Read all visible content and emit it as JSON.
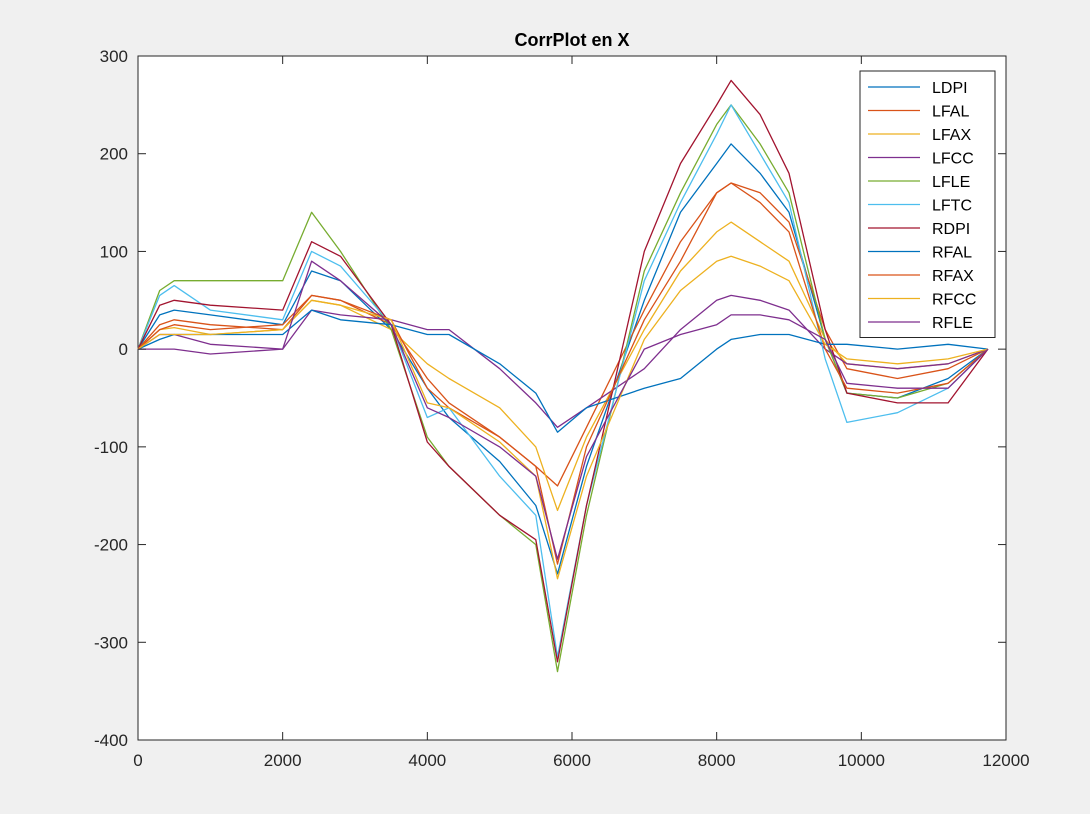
{
  "figure": {
    "background": "#f0f0f0"
  },
  "chart_data": {
    "type": "line",
    "title": "CorrPlot en X",
    "xlabel": "",
    "ylabel": "",
    "xlim": [
      0,
      12000
    ],
    "ylim": [
      -400,
      300
    ],
    "xticks": [
      0,
      2000,
      4000,
      6000,
      8000,
      10000,
      12000
    ],
    "xtick_labels": [
      "0",
      "2000",
      "4000",
      "6000",
      "8000",
      "10000",
      "12000"
    ],
    "yticks": [
      300,
      200,
      100,
      0,
      -100,
      -200,
      -300,
      -400
    ],
    "ytick_labels": [
      "300",
      "200",
      "100",
      "0",
      "-100",
      "-200",
      "-300",
      "-400"
    ],
    "grid": false,
    "legend_position": "top-right",
    "x": [
      0,
      300,
      500,
      1000,
      2000,
      2400,
      2800,
      3500,
      4000,
      4300,
      5000,
      5500,
      5800,
      6200,
      7000,
      7500,
      8000,
      8200,
      8600,
      9000,
      9500,
      9800,
      10500,
      11200,
      11750
    ],
    "series": [
      {
        "name": "LDPI",
        "color": "#0072BD",
        "values": [
          0,
          35,
          40,
          35,
          25,
          80,
          70,
          20,
          -40,
          -70,
          -115,
          -160,
          -230,
          -120,
          50,
          140,
          190,
          210,
          180,
          140,
          10,
          -45,
          -50,
          -30,
          0
        ]
      },
      {
        "name": "LFAL",
        "color": "#D95319",
        "values": [
          0,
          25,
          30,
          25,
          20,
          55,
          50,
          25,
          -30,
          -55,
          -90,
          -120,
          -140,
          -80,
          40,
          110,
          160,
          170,
          160,
          130,
          20,
          -20,
          -30,
          -20,
          0
        ]
      },
      {
        "name": "LFAX",
        "color": "#EDB120",
        "values": [
          0,
          20,
          22,
          15,
          20,
          50,
          45,
          20,
          -15,
          -30,
          -60,
          -100,
          -165,
          -90,
          20,
          80,
          120,
          130,
          110,
          90,
          10,
          -15,
          -20,
          -15,
          0
        ]
      },
      {
        "name": "LFCC",
        "color": "#7E2F8E",
        "values": [
          0,
          15,
          15,
          5,
          0,
          40,
          35,
          30,
          20,
          20,
          -20,
          -55,
          -80,
          -60,
          -20,
          20,
          50,
          55,
          50,
          40,
          0,
          -15,
          -20,
          -15,
          0
        ]
      },
      {
        "name": "LFLE",
        "color": "#77AC30",
        "values": [
          0,
          60,
          70,
          70,
          70,
          140,
          100,
          20,
          -90,
          -120,
          -170,
          -200,
          -330,
          -170,
          80,
          160,
          230,
          250,
          210,
          160,
          10,
          -45,
          -50,
          -35,
          0
        ]
      },
      {
        "name": "LFTC",
        "color": "#4DBEEE",
        "values": [
          0,
          55,
          65,
          40,
          30,
          100,
          85,
          25,
          -70,
          -60,
          -130,
          -170,
          -315,
          -160,
          70,
          150,
          220,
          250,
          200,
          150,
          -10,
          -75,
          -65,
          -40,
          0
        ]
      },
      {
        "name": "RDPI",
        "color": "#A2142F",
        "values": [
          0,
          45,
          50,
          45,
          40,
          110,
          95,
          25,
          -95,
          -120,
          -170,
          -195,
          -320,
          -160,
          100,
          190,
          250,
          275,
          240,
          180,
          20,
          -45,
          -55,
          -55,
          0
        ]
      },
      {
        "name": "RFAL",
        "color": "#0072BD",
        "values": [
          0,
          10,
          15,
          15,
          15,
          40,
          30,
          25,
          15,
          15,
          -15,
          -45,
          -85,
          -60,
          -40,
          -30,
          0,
          10,
          15,
          15,
          5,
          5,
          0,
          5,
          0
        ]
      },
      {
        "name": "RFAX",
        "color": "#D95319",
        "values": [
          0,
          20,
          25,
          20,
          25,
          55,
          50,
          30,
          -40,
          -60,
          -90,
          -120,
          -220,
          -100,
          30,
          90,
          160,
          170,
          150,
          120,
          0,
          -40,
          -45,
          -35,
          0
        ]
      },
      {
        "name": "RFCC",
        "color": "#EDB120",
        "values": [
          0,
          15,
          15,
          15,
          20,
          50,
          45,
          30,
          -55,
          -60,
          -95,
          -130,
          -235,
          -130,
          10,
          60,
          90,
          95,
          85,
          70,
          5,
          -10,
          -15,
          -10,
          0
        ]
      },
      {
        "name": "RFLE",
        "color": "#7E2F8E",
        "values": [
          0,
          0,
          0,
          -5,
          0,
          90,
          70,
          25,
          -60,
          -70,
          -100,
          -130,
          -215,
          -110,
          0,
          15,
          25,
          35,
          35,
          30,
          10,
          -35,
          -40,
          -40,
          0
        ]
      }
    ]
  }
}
